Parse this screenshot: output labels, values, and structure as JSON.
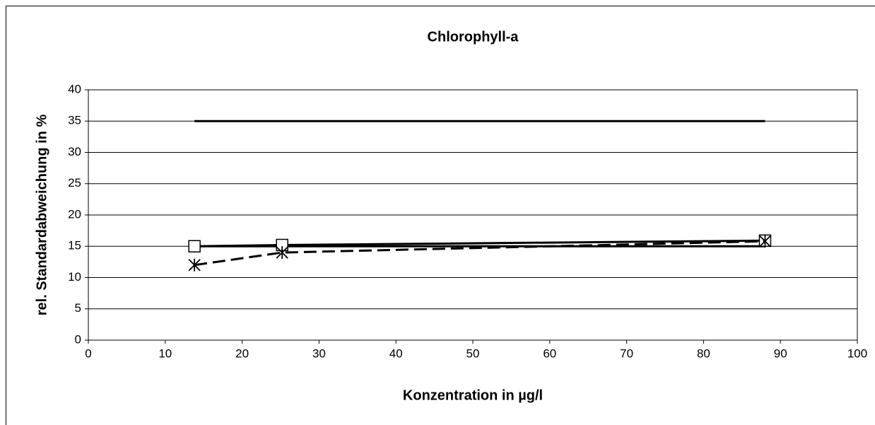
{
  "chart_data": {
    "type": "line",
    "title": "Chlorophyll-a",
    "x_label": "Konzentration in µg/l",
    "y_label": "rel. Standardabweichung in %",
    "xlim": [
      0,
      100
    ],
    "xticks": [
      0,
      10,
      20,
      30,
      40,
      50,
      60,
      70,
      80,
      90,
      100
    ],
    "ylim": [
      0,
      40
    ],
    "yticks": [
      0,
      5,
      10,
      15,
      20,
      25,
      30,
      35,
      40
    ],
    "grid": true,
    "series": [
      {
        "color": "#000000",
        "line_style": "solid",
        "marker": "none",
        "x": [
          13.8,
          88
        ],
        "values": [
          35,
          35
        ]
      },
      {
        "color": "#000000",
        "line_style": "solid",
        "marker": "none",
        "x": [
          13.8,
          88
        ],
        "values": [
          15,
          15
        ]
      },
      {
        "color": "#000000",
        "line_style": "solid",
        "marker": "square",
        "x": [
          13.8,
          25.2,
          88
        ],
        "values": [
          15,
          15.2,
          15.9
        ]
      },
      {
        "color": "#000000",
        "line_style": "dashed",
        "marker": "asterisk",
        "x": [
          13.8,
          25.2,
          88
        ],
        "values": [
          12,
          14,
          15.8
        ]
      }
    ]
  }
}
